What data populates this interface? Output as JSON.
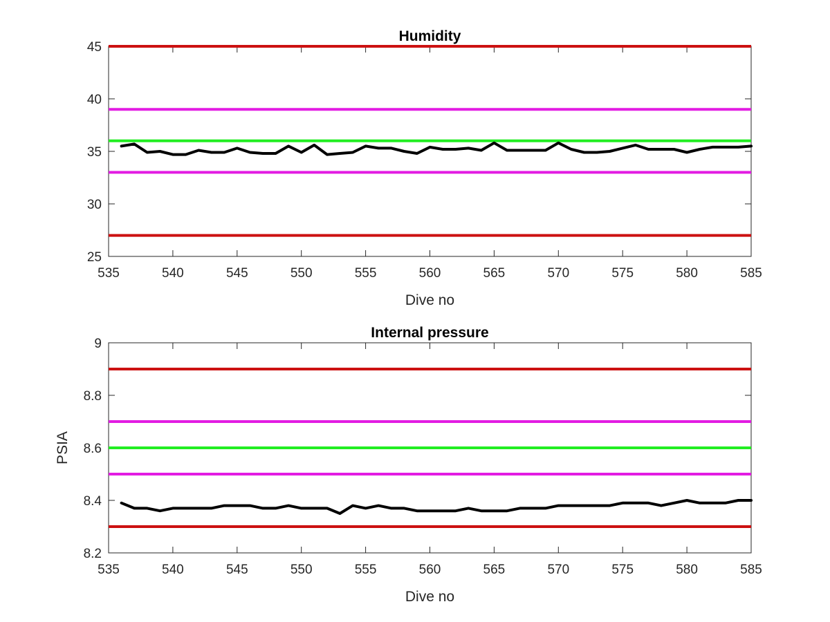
{
  "figure": {
    "background": "#ffffff"
  },
  "chart_data": [
    {
      "type": "line",
      "title": "Humidity",
      "xlabel": "Dive no",
      "ylabel": "",
      "xlim": [
        535,
        585
      ],
      "ylim": [
        25,
        45
      ],
      "xticks": [
        535,
        540,
        545,
        550,
        555,
        560,
        565,
        570,
        575,
        580,
        585
      ],
      "yticks": [
        25,
        30,
        35,
        40,
        45
      ],
      "grid": false,
      "reference_lines": [
        {
          "y": 45,
          "color": "#cc1111"
        },
        {
          "y": 39,
          "color": "#e21ce2"
        },
        {
          "y": 36,
          "color": "#22ee22"
        },
        {
          "y": 33,
          "color": "#e21ce2"
        },
        {
          "y": 27,
          "color": "#cc1111"
        }
      ],
      "series": [
        {
          "color": "#000000",
          "x": [
            536,
            537,
            538,
            539,
            540,
            541,
            542,
            543,
            544,
            545,
            546,
            547,
            548,
            549,
            550,
            551,
            552,
            553,
            554,
            555,
            556,
            557,
            558,
            559,
            560,
            561,
            562,
            563,
            564,
            565,
            566,
            567,
            568,
            569,
            570,
            571,
            572,
            573,
            574,
            575,
            576,
            577,
            578,
            579,
            580,
            581,
            582,
            583,
            584,
            585
          ],
          "y": [
            35.5,
            35.7,
            34.9,
            35.0,
            34.7,
            34.7,
            35.1,
            34.9,
            34.9,
            35.3,
            34.9,
            34.8,
            34.8,
            35.5,
            34.9,
            35.6,
            34.7,
            34.8,
            34.9,
            35.5,
            35.3,
            35.3,
            35.0,
            34.8,
            35.4,
            35.2,
            35.2,
            35.3,
            35.1,
            35.8,
            35.1,
            35.1,
            35.1,
            35.1,
            35.8,
            35.2,
            34.9,
            34.9,
            35.0,
            35.3,
            35.6,
            35.2,
            35.2,
            35.2,
            34.9,
            35.2,
            35.4,
            35.4,
            35.4,
            35.5
          ]
        }
      ]
    },
    {
      "type": "line",
      "title": "Internal pressure",
      "xlabel": "Dive no",
      "ylabel": "PSIA",
      "xlim": [
        535,
        585
      ],
      "ylim": [
        8.2,
        9
      ],
      "xticks": [
        535,
        540,
        545,
        550,
        555,
        560,
        565,
        570,
        575,
        580,
        585
      ],
      "yticks": [
        8.2,
        8.4,
        8.6,
        8.8,
        9
      ],
      "grid": false,
      "reference_lines": [
        {
          "y": 8.9,
          "color": "#cc1111"
        },
        {
          "y": 8.7,
          "color": "#e21ce2"
        },
        {
          "y": 8.6,
          "color": "#22ee22"
        },
        {
          "y": 8.5,
          "color": "#e21ce2"
        },
        {
          "y": 8.3,
          "color": "#cc1111"
        }
      ],
      "series": [
        {
          "color": "#000000",
          "x": [
            536,
            537,
            538,
            539,
            540,
            541,
            542,
            543,
            544,
            545,
            546,
            547,
            548,
            549,
            550,
            551,
            552,
            553,
            554,
            555,
            556,
            557,
            558,
            559,
            560,
            561,
            562,
            563,
            564,
            565,
            566,
            567,
            568,
            569,
            570,
            571,
            572,
            573,
            574,
            575,
            576,
            577,
            578,
            579,
            580,
            581,
            582,
            583,
            584,
            585
          ],
          "y": [
            8.39,
            8.37,
            8.37,
            8.36,
            8.37,
            8.37,
            8.37,
            8.37,
            8.38,
            8.38,
            8.38,
            8.37,
            8.37,
            8.38,
            8.37,
            8.37,
            8.37,
            8.35,
            8.38,
            8.37,
            8.38,
            8.37,
            8.37,
            8.36,
            8.36,
            8.36,
            8.36,
            8.37,
            8.36,
            8.36,
            8.36,
            8.37,
            8.37,
            8.37,
            8.38,
            8.38,
            8.38,
            8.38,
            8.38,
            8.39,
            8.39,
            8.39,
            8.38,
            8.39,
            8.4,
            8.39,
            8.39,
            8.39,
            8.4,
            8.4
          ]
        }
      ]
    }
  ]
}
